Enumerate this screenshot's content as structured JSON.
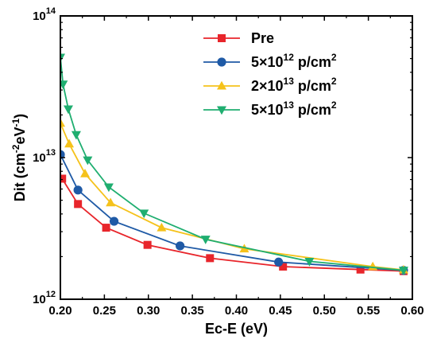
{
  "chart_data": {
    "type": "line",
    "xlabel": "Ec-E (eV)",
    "ylabel": "Dit (cm-2eV-1)",
    "x_scale": "linear",
    "y_scale": "log",
    "xlim": [
      0.2,
      0.6
    ],
    "ylim": [
      1000000000000.0,
      100000000000000.0
    ],
    "x_ticks": [
      "0.20",
      "0.25",
      "0.30",
      "0.35",
      "0.40",
      "0.45",
      "0.50",
      "0.55",
      "0.60"
    ],
    "y_ticks": [
      {
        "value": 1000000000000.0,
        "base": "10",
        "exp": "12"
      },
      {
        "value": 10000000000000.0,
        "base": "10",
        "exp": "13"
      },
      {
        "value": 100000000000000.0,
        "base": "10",
        "exp": "14"
      }
    ],
    "grid": false,
    "legend_position": "top-right",
    "series": [
      {
        "name": "Pre",
        "legend_parts": [
          {
            "t": "Pre"
          }
        ],
        "color": "#e8252b",
        "marker": "square",
        "points": [
          [
            0.202,
            7100000000000.0
          ],
          [
            0.22,
            4700000000000.0
          ],
          [
            0.252,
            3200000000000.0
          ],
          [
            0.299,
            2420000000000.0
          ],
          [
            0.37,
            1950000000000.0
          ],
          [
            0.453,
            1700000000000.0
          ],
          [
            0.541,
            1620000000000.0
          ],
          [
            0.59,
            1580000000000.0
          ]
        ]
      },
      {
        "name": "5×10^12 p/cm^2",
        "legend_parts": [
          {
            "t": "5×10"
          },
          {
            "t": "12",
            "sup": true
          },
          {
            "t": " p/cm"
          },
          {
            "t": "2",
            "sup": true
          }
        ],
        "color": "#1f5aa6",
        "marker": "circle",
        "points": [
          [
            0.2,
            10500000000000.0
          ],
          [
            0.22,
            5900000000000.0
          ],
          [
            0.261,
            3550000000000.0
          ],
          [
            0.336,
            2380000000000.0
          ],
          [
            0.448,
            1830000000000.0
          ],
          [
            0.59,
            1600000000000.0
          ]
        ]
      },
      {
        "name": "2×10^13 p/cm^2",
        "legend_parts": [
          {
            "t": "2×10"
          },
          {
            "t": "13",
            "sup": true
          },
          {
            "t": " p/cm"
          },
          {
            "t": "2",
            "sup": true
          }
        ],
        "color": "#f5c21b",
        "marker": "triangle-up",
        "points": [
          [
            0.2,
            17500000000000.0
          ],
          [
            0.21,
            12500000000000.0
          ],
          [
            0.228,
            7700000000000.0
          ],
          [
            0.257,
            4800000000000.0
          ],
          [
            0.315,
            3200000000000.0
          ],
          [
            0.409,
            2270000000000.0
          ],
          [
            0.555,
            1700000000000.0
          ],
          [
            0.59,
            1610000000000.0
          ]
        ]
      },
      {
        "name": "5×10^13 p/cm^2",
        "legend_parts": [
          {
            "t": "5×10"
          },
          {
            "t": "13",
            "sup": true
          },
          {
            "t": " p/cm"
          },
          {
            "t": "2",
            "sup": true
          }
        ],
        "color": "#1fae70",
        "marker": "triangle-down",
        "points": [
          [
            0.2,
            51000000000000.0
          ],
          [
            0.203,
            33000000000000.0
          ],
          [
            0.209,
            22000000000000.0
          ],
          [
            0.218,
            14500000000000.0
          ],
          [
            0.231,
            9600000000000.0
          ],
          [
            0.255,
            6200000000000.0
          ],
          [
            0.295,
            4050000000000.0
          ],
          [
            0.365,
            2650000000000.0
          ],
          [
            0.483,
            1850000000000.0
          ],
          [
            0.59,
            1600000000000.0
          ]
        ]
      }
    ]
  }
}
